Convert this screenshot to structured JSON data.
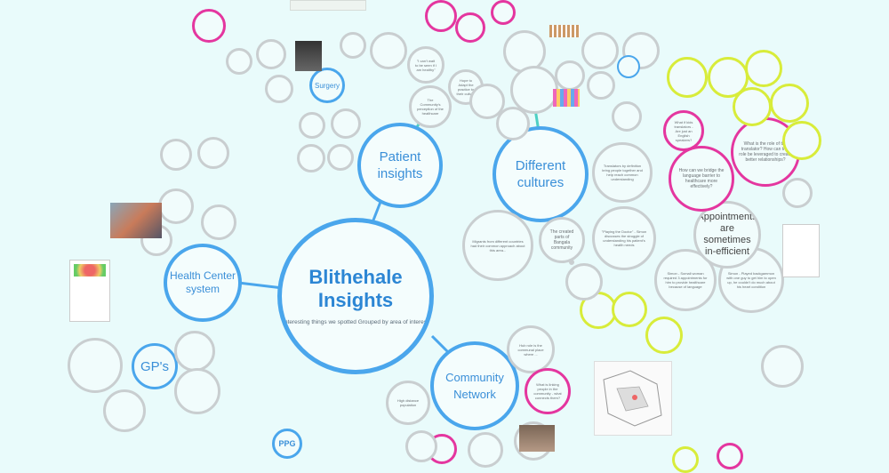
{
  "main": {
    "title": "Blithehale Insights",
    "subtitle": "Interesting things we spotted Grouped by area of interest"
  },
  "hubs": {
    "patient": "Patient insights",
    "cultures": "Different cultures",
    "health_center": "Health Center system",
    "gps": "GP's",
    "community": "Community Network",
    "surgery": "Surgery",
    "ppg": "PPG"
  },
  "notes": {
    "appointments": "Appointments are sometimes in-efficient",
    "translators": "Translators by definition bring people together and help reach common understanding",
    "created_parts": "The created parts of Bangala community",
    "community_perception": "The Community's perception of the healthcare",
    "trust": "\"I can't wait to be seen if I am healthy\"",
    "hope": "Hope to Adapt the practice to their culture",
    "playing_doctor": "\"Playing the Doctor\" - Simon discusses the struggle of understanding his patient's health needs",
    "simon_somali": "Simon - Somali woman required 3 appointments for him to provide healthcare because of language",
    "simon_playboy": "Simon - Played backgammon with one guy to get him to open up, he couldn't do much about his heart condition",
    "bridge_language": "How can we bridge the language barrier to healthcare more effectively?",
    "translator_role": "What is the role of the translator? How can that role be leveraged to create better relationships?",
    "what_if_translators": "What if kids translators - Are just an English speakers?",
    "migrants": "Migrants from different countries had their common approach about this area...",
    "hub_role": "Hub role is the communal place where ...",
    "high_distance": "High distance population",
    "what_linking": "What is linking people in the community - what connects them?"
  },
  "colors": {
    "background": "#e9fbfb",
    "blue": "#4aa6ec",
    "magenta": "#e4369f",
    "yellow": "#d8ec3a",
    "grey": "#c9ced0"
  }
}
